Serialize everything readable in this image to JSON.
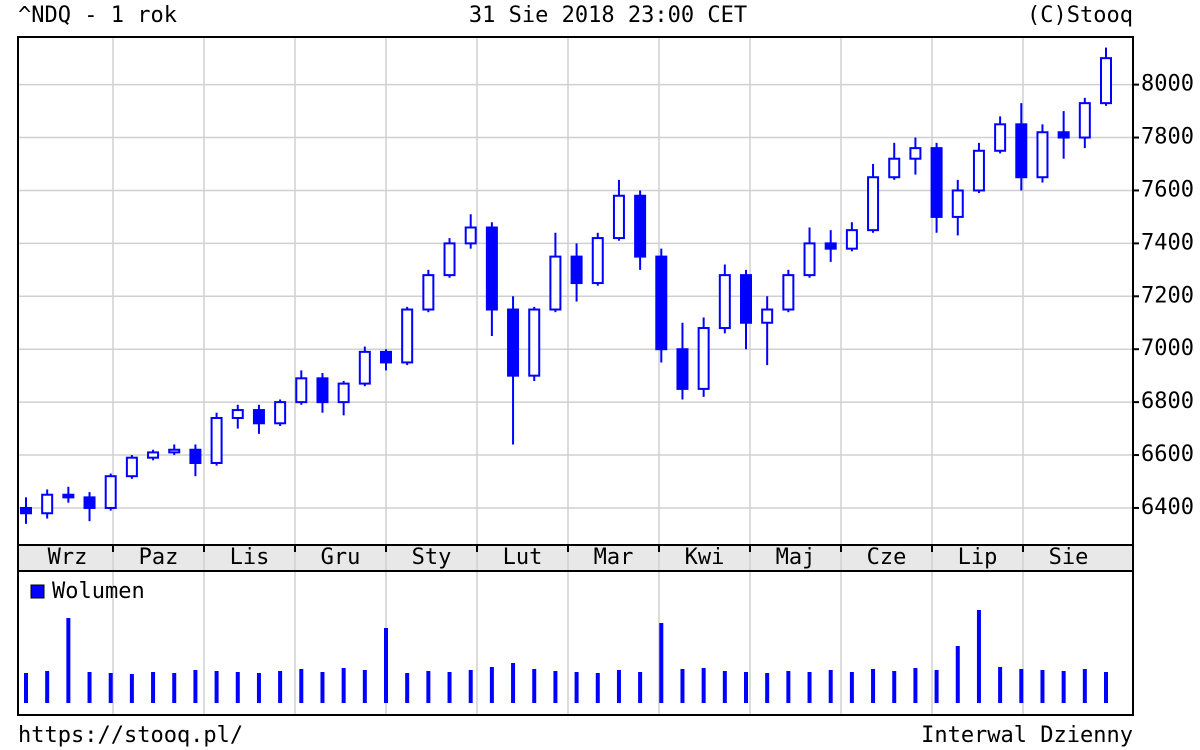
{
  "header": {
    "left": "^NDQ - 1 rok",
    "center": "31 Sie 2018 23:00 CET",
    "right": "(C)Stooq"
  },
  "footer": {
    "left": "https://stooq.pl/",
    "right": "Interwal Dzienny"
  },
  "chart_data": [
    {
      "type": "candlestick",
      "color": "#0000ff",
      "months": [
        "Wrz",
        "Paz",
        "Lis",
        "Gru",
        "Sty",
        "Lut",
        "Mar",
        "Kwi",
        "Maj",
        "Cze",
        "Lip",
        "Sie"
      ],
      "ylim": [
        6260,
        8180
      ],
      "yticks": [
        6400,
        6600,
        6800,
        7000,
        7200,
        7400,
        7600,
        7800,
        8000
      ],
      "grid": true,
      "open": [
        6400,
        6380,
        6450,
        6440,
        6400,
        6520,
        6590,
        6610,
        6620,
        6570,
        6740,
        6770,
        6720,
        6800,
        6890,
        6800,
        6870,
        6990,
        6950,
        7150,
        7280,
        7400,
        7460,
        7150,
        6900,
        7150,
        7350,
        7250,
        7420,
        7580,
        7350,
        7000,
        6850,
        7080,
        7280,
        7100,
        7150,
        7280,
        7400,
        7380,
        7450,
        7650,
        7720,
        7760,
        7500,
        7600,
        7750,
        7850,
        7650,
        7820,
        7800,
        7930
      ],
      "high": [
        6440,
        6470,
        6480,
        6460,
        6530,
        6600,
        6620,
        6640,
        6640,
        6760,
        6790,
        6790,
        6810,
        6920,
        6910,
        6880,
        7010,
        7000,
        7160,
        7300,
        7420,
        7510,
        7480,
        7200,
        7160,
        7440,
        7400,
        7440,
        7640,
        7600,
        7380,
        7100,
        7120,
        7320,
        7300,
        7200,
        7300,
        7460,
        7450,
        7480,
        7700,
        7780,
        7800,
        7780,
        7640,
        7780,
        7880,
        7930,
        7850,
        7900,
        7950,
        8140
      ],
      "low": [
        6340,
        6360,
        6420,
        6350,
        6390,
        6510,
        6580,
        6600,
        6520,
        6560,
        6700,
        6680,
        6710,
        6790,
        6760,
        6750,
        6860,
        6920,
        6940,
        7140,
        7270,
        7380,
        7050,
        6640,
        6880,
        7140,
        7180,
        7240,
        7410,
        7300,
        6950,
        6810,
        6820,
        7060,
        7000,
        6940,
        7140,
        7270,
        7330,
        7370,
        7440,
        7640,
        7660,
        7440,
        7430,
        7590,
        7740,
        7600,
        7630,
        7720,
        7760,
        7920
      ],
      "close": [
        6380,
        6450,
        6440,
        6400,
        6520,
        6590,
        6610,
        6620,
        6570,
        6740,
        6770,
        6720,
        6800,
        6890,
        6800,
        6870,
        6990,
        6950,
        7150,
        7280,
        7400,
        7460,
        7150,
        6900,
        7150,
        7350,
        7250,
        7420,
        7580,
        7350,
        7000,
        6850,
        7080,
        7280,
        7100,
        7150,
        7280,
        7400,
        7380,
        7450,
        7650,
        7720,
        7760,
        7500,
        7600,
        7750,
        7850,
        7650,
        7820,
        7800,
        7930,
        8100
      ]
    },
    {
      "type": "bar",
      "legend": "Wolumen",
      "color": "#0000ff",
      "ylim": [
        0,
        100
      ],
      "values": [
        30,
        32,
        85,
        31,
        30,
        29,
        31,
        30,
        33,
        32,
        31,
        30,
        32,
        34,
        31,
        35,
        33,
        75,
        30,
        32,
        31,
        33,
        36,
        40,
        34,
        32,
        31,
        30,
        33,
        31,
        80,
        34,
        35,
        32,
        31,
        30,
        32,
        31,
        33,
        31,
        34,
        32,
        35,
        33,
        57,
        93,
        36,
        34,
        33,
        32,
        34,
        31
      ]
    }
  ]
}
